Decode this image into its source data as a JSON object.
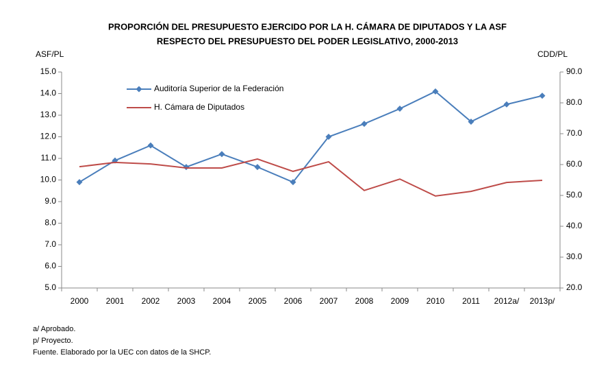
{
  "chart_data": {
    "type": "line",
    "title": [
      "PROPORCIÓN DEL PRESUPUESTO EJERCIDO POR LA H. CÁMARA DE DIPUTADOS  Y LA ASF",
      "RESPECTO DEL PRESUPUESTO DEL PODER LEGISLATIVO, 2000-2013"
    ],
    "y_label": "ASF/PL",
    "y2_label": "CDD/PL",
    "categories": [
      "2000",
      "2001",
      "2002",
      "2003",
      "2004",
      "2005",
      "2006",
      "2007",
      "2008",
      "2009",
      "2010",
      "2011",
      "2012a/",
      "2013p/"
    ],
    "series": [
      {
        "name": "Auditoría Superior de la Federación",
        "color": "#4a7ebb",
        "marker": "diamond",
        "values": [
          9.9,
          10.9,
          11.6,
          10.6,
          11.2,
          10.6,
          9.9,
          12.0,
          12.6,
          13.3,
          14.1,
          12.7,
          13.5,
          13.9
        ]
      },
      {
        "name": "H. Cámara de Diputados",
        "color": "#be4b48",
        "axis": "y2",
        "values": [
          59.3,
          60.7,
          60.2,
          58.9,
          58.9,
          61.8,
          57.8,
          60.9,
          51.6,
          55.3,
          49.8,
          51.3,
          54.2,
          54.9
        ]
      }
    ],
    "ylim": [
      5,
      15
    ],
    "yticks": [
      {
        "value": 5,
        "label": "5.0"
      },
      {
        "value": 6,
        "label": "6.0"
      },
      {
        "value": 7,
        "label": "7.0"
      },
      {
        "value": 8,
        "label": "8.0"
      },
      {
        "value": 9,
        "label": "9.0"
      },
      {
        "value": 10,
        "label": "10.0"
      },
      {
        "value": 11,
        "label": "11.0"
      },
      {
        "value": 12,
        "label": "12.0"
      },
      {
        "value": 13,
        "label": "13.0"
      },
      {
        "value": 14,
        "label": "14.0"
      },
      {
        "value": 15,
        "label": "15.0"
      }
    ],
    "y2lim": [
      20,
      90
    ],
    "y2ticks": [
      {
        "value": 20,
        "label": "20.0"
      },
      {
        "value": 30,
        "label": "30.0"
      },
      {
        "value": 40,
        "label": "40.0"
      },
      {
        "value": 50,
        "label": "50.0"
      },
      {
        "value": 60,
        "label": "60.0"
      },
      {
        "value": 70,
        "label": "70.0"
      },
      {
        "value": 80,
        "label": "80.0"
      },
      {
        "value": 90,
        "label": "90.0"
      }
    ],
    "legend": "top-left",
    "notes": [
      "a/ Aprobado.",
      "p/ Proyecto.",
      "Fuente. Elaborado por la UEC con datos de la SHCP."
    ]
  }
}
